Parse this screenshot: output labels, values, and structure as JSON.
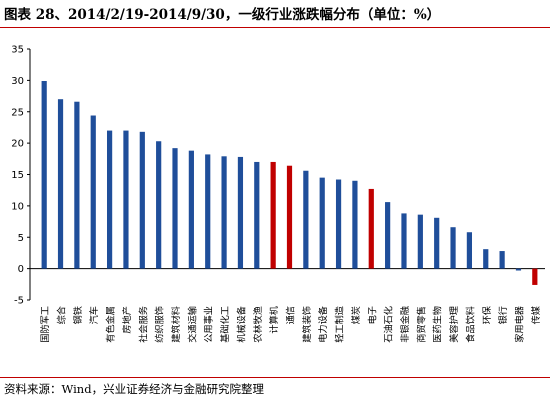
{
  "chart_data": {
    "type": "bar",
    "title": "图表 28、2014/2/19-2014/9/30，一级行业涨跌幅分布（单位：%）",
    "source": "资料来源：Wind，兴业证券经济与金融研究院整理",
    "ylim": [
      -5,
      35
    ],
    "yticks": [
      -5,
      0,
      5,
      10,
      15,
      20,
      25,
      30,
      35
    ],
    "grid": false,
    "colors": {
      "default": "#1f4e9a",
      "highlight": "#c00000"
    },
    "categories": [
      "国防军工",
      "综合",
      "钢铁",
      "汽车",
      "有色金属",
      "房地产",
      "社会服务",
      "纺织服饰",
      "建筑材料",
      "交通运输",
      "公用事业",
      "基础化工",
      "机械设备",
      "农林牧渔",
      "计算机",
      "通信",
      "建筑装饰",
      "电力设备",
      "轻工制造",
      "煤炭",
      "电子",
      "石油石化",
      "非银金融",
      "商贸零售",
      "医药生物",
      "美容护理",
      "食品饮料",
      "环保",
      "银行",
      "家用电器",
      "传媒"
    ],
    "values": [
      29.9,
      27.0,
      26.6,
      24.4,
      22.0,
      22.0,
      21.8,
      20.3,
      19.2,
      18.8,
      18.2,
      17.9,
      17.8,
      17.0,
      17.0,
      16.4,
      15.6,
      14.5,
      14.2,
      14.0,
      12.7,
      10.6,
      8.8,
      8.6,
      8.1,
      6.6,
      5.8,
      3.1,
      2.8,
      -0.3,
      -2.6
    ],
    "highlight": [
      "计算机",
      "通信",
      "电子",
      "传媒"
    ]
  }
}
